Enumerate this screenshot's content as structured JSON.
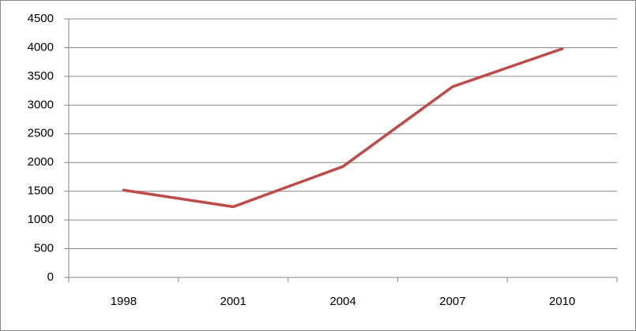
{
  "chart_data": {
    "type": "line",
    "categories": [
      "1998",
      "2001",
      "2004",
      "2007",
      "2010"
    ],
    "series": [
      {
        "color": "#be4b48",
        "values": [
          1520,
          1230,
          1930,
          3320,
          3980
        ]
      }
    ],
    "ylim": [
      0,
      4500
    ],
    "yticks": [
      0,
      500,
      1000,
      1500,
      2000,
      2500,
      3000,
      3500,
      4000,
      4500
    ],
    "grid": true
  }
}
